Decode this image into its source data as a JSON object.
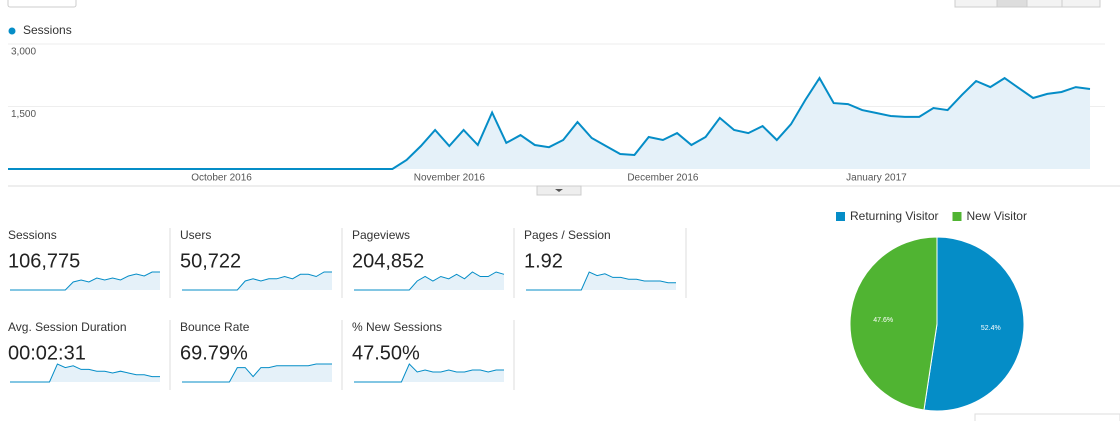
{
  "chart_data": [
    {
      "type": "line",
      "categories": [
        null,
        null,
        null,
        null,
        null,
        null,
        null,
        null,
        null,
        null,
        null,
        null,
        null,
        null,
        null,
        "October 2016",
        null,
        null,
        null,
        null,
        null,
        null,
        null,
        null,
        null,
        null,
        null,
        null,
        null,
        null,
        null,
        "November 2016",
        null,
        null,
        null,
        null,
        null,
        null,
        null,
        null,
        null,
        null,
        null,
        null,
        null,
        null,
        "December 2016",
        null,
        null,
        null,
        null,
        null,
        null,
        null,
        null,
        null,
        null,
        null,
        null,
        null,
        null,
        "January 2017",
        null,
        null,
        null,
        null,
        null,
        null,
        null,
        null,
        null,
        null,
        null,
        null,
        null,
        null,
        null
      ],
      "series": [
        {
          "name": "Sessions",
          "color": "#058dc7",
          "values": [
            0,
            0,
            0,
            0,
            0,
            0,
            0,
            0,
            0,
            0,
            0,
            0,
            0,
            0,
            0,
            0,
            0,
            0,
            0,
            0,
            0,
            0,
            0,
            0,
            0,
            0,
            0,
            0,
            215,
            552,
            936,
            552,
            936,
            576,
            1357,
            627,
            814,
            576,
            524,
            697,
            1128,
            744,
            552,
            360,
            337,
            768,
            697,
            861,
            576,
            768,
            1226,
            936,
            861,
            1030,
            697,
            1076,
            1657,
            2181,
            1582,
            1558,
            1413,
            1343,
            1273,
            1250,
            1250,
            1465,
            1413,
            1778,
            2111,
            1966,
            2181,
            1942,
            1704,
            1802,
            1849,
            1966,
            1919
          ]
        }
      ],
      "ylim": [
        0,
        3000
      ],
      "yticks": [
        {
          "value": 1500,
          "label": "1,500"
        },
        {
          "value": 3000,
          "label": "3,000"
        }
      ],
      "grid": true
    },
    {
      "type": "pie",
      "categories": [
        "Returning Visitor",
        "New Visitor"
      ],
      "values": [
        52.4,
        47.6
      ],
      "value_labels": [
        "52.4%",
        "47.6%"
      ],
      "colors": [
        "#058dc7",
        "#50b432"
      ]
    }
  ],
  "scorecards": [
    {
      "label": "Sessions",
      "value": "106,775",
      "spark": [
        0,
        0,
        0,
        0,
        0,
        0,
        0,
        0,
        4,
        5,
        4,
        6,
        5,
        6,
        5,
        7,
        8,
        7,
        9,
        9
      ]
    },
    {
      "label": "Users",
      "value": "50,722",
      "spark": [
        0,
        0,
        0,
        0,
        0,
        0,
        0,
        0,
        4,
        5,
        4,
        5,
        5,
        6,
        5,
        7,
        7,
        6,
        8,
        8
      ]
    },
    {
      "label": "Pageviews",
      "value": "204,852",
      "spark": [
        0,
        0,
        0,
        0,
        0,
        0,
        0,
        0,
        4,
        6,
        4,
        6,
        5,
        7,
        5,
        8,
        6,
        6,
        8,
        7
      ]
    },
    {
      "label": "Pages / Session",
      "value": "1.92",
      "spark": [
        0,
        0,
        0,
        0,
        0,
        0,
        0,
        0,
        10,
        8,
        9,
        7,
        7,
        6,
        6,
        5,
        5,
        5,
        4,
        4
      ]
    },
    {
      "label": "Avg. Session Duration",
      "value": "00:02:31",
      "spark": [
        0,
        0,
        0,
        0,
        0,
        0,
        10,
        8,
        9,
        7,
        7,
        6,
        6,
        5,
        6,
        5,
        4,
        4,
        3,
        3
      ]
    },
    {
      "label": "Bounce Rate",
      "value": "69.79%",
      "spark": [
        0,
        0,
        0,
        0,
        0,
        0,
        0,
        8,
        8,
        3,
        8,
        8,
        9,
        9,
        9,
        9,
        9,
        10,
        10,
        10
      ]
    },
    {
      "label": "% New Sessions",
      "value": "47.50%",
      "spark": [
        0,
        0,
        0,
        0,
        0,
        0,
        0,
        9,
        5,
        6,
        5,
        5,
        6,
        5,
        5,
        6,
        6,
        5,
        6,
        6
      ]
    }
  ]
}
